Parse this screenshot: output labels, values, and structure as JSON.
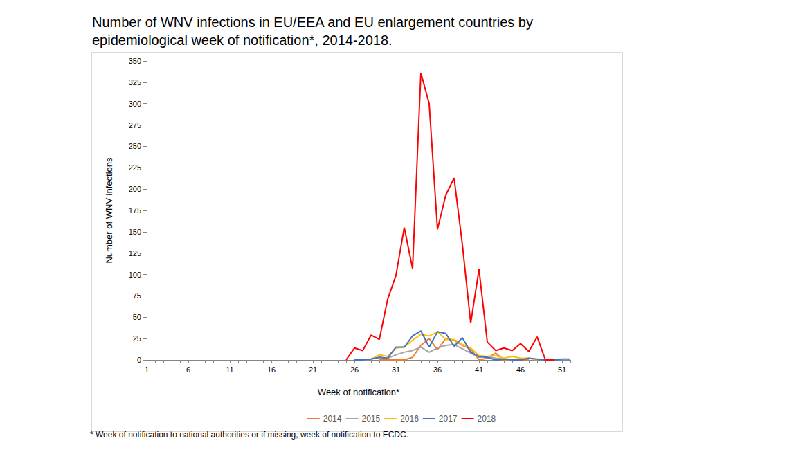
{
  "chart_data": {
    "type": "line",
    "title": "Number of WNV infections in EU/EEA and EU enlargement countries by epidemiological week of notification*, 2014-2018.",
    "x_label": "Week of notification*",
    "y_label": "Number of WNV infections",
    "note": "* Week of notification to national authorities or if missing, week of notification to ECDC.",
    "categories": [
      "1",
      null,
      null,
      null,
      null,
      "6",
      null,
      null,
      null,
      null,
      "11",
      null,
      null,
      null,
      null,
      "16",
      null,
      null,
      null,
      null,
      "21",
      null,
      null,
      null,
      null,
      "26",
      null,
      null,
      null,
      null,
      "31",
      null,
      null,
      null,
      null,
      "36",
      null,
      null,
      null,
      null,
      "41",
      null,
      null,
      null,
      null,
      "46",
      null,
      null,
      null,
      null,
      "51",
      null
    ],
    "series": [
      {
        "name": "2014",
        "color": "#ED7D31",
        "values": [
          null,
          null,
          null,
          null,
          null,
          null,
          null,
          null,
          null,
          null,
          null,
          null,
          null,
          null,
          null,
          null,
          null,
          null,
          null,
          null,
          null,
          null,
          null,
          null,
          null,
          null,
          null,
          null,
          0,
          0,
          0,
          0,
          3,
          17,
          25,
          12,
          25,
          23,
          17,
          13,
          0,
          2,
          8,
          0,
          0,
          1,
          0,
          null,
          null,
          null,
          null,
          null
        ]
      },
      {
        "name": "2015",
        "color": "#A5A5A5",
        "values": [
          null,
          null,
          null,
          null,
          null,
          null,
          null,
          null,
          null,
          null,
          null,
          null,
          null,
          null,
          null,
          null,
          null,
          null,
          null,
          null,
          null,
          null,
          null,
          null,
          null,
          null,
          null,
          1,
          3,
          2,
          6,
          9,
          11,
          15,
          9,
          14,
          17,
          18,
          13,
          8,
          3,
          4,
          2,
          1,
          0,
          null,
          null,
          null,
          null,
          null,
          null,
          null
        ]
      },
      {
        "name": "2016",
        "color": "#FFC000",
        "values": [
          null,
          null,
          null,
          null,
          null,
          null,
          null,
          null,
          null,
          null,
          null,
          null,
          null,
          null,
          null,
          null,
          null,
          null,
          null,
          null,
          null,
          null,
          null,
          null,
          null,
          null,
          0,
          1,
          6,
          4,
          14,
          15,
          23,
          30,
          28,
          33,
          24,
          24,
          18,
          14,
          5,
          4,
          5,
          2,
          4,
          2,
          2,
          0,
          null,
          null,
          null,
          null
        ]
      },
      {
        "name": "2017",
        "color": "#4472C4",
        "values": [
          null,
          null,
          null,
          null,
          null,
          null,
          null,
          null,
          null,
          null,
          null,
          null,
          null,
          null,
          null,
          null,
          null,
          null,
          null,
          null,
          null,
          null,
          null,
          null,
          null,
          0,
          0,
          1,
          3,
          2,
          15,
          15,
          28,
          34,
          15,
          33,
          31,
          16,
          26,
          9,
          4,
          3,
          0,
          1,
          0,
          0,
          2,
          1,
          0,
          0,
          1,
          1
        ]
      },
      {
        "name": "2018",
        "color": "#FF0000",
        "values": [
          null,
          null,
          null,
          null,
          null,
          null,
          null,
          null,
          null,
          null,
          null,
          null,
          null,
          null,
          null,
          null,
          null,
          null,
          null,
          null,
          null,
          null,
          null,
          null,
          0,
          14,
          11,
          29,
          24,
          71,
          99,
          155,
          107,
          336,
          300,
          153,
          193,
          213,
          135,
          43,
          106,
          21,
          11,
          14,
          11,
          19,
          10,
          27,
          0,
          0,
          null,
          null
        ]
      }
    ],
    "ylim": [
      0,
      350
    ],
    "yticks": [
      0,
      25,
      50,
      75,
      100,
      125,
      150,
      175,
      200,
      225,
      250,
      275,
      300,
      325,
      350
    ],
    "grid": false,
    "legend": "bottom"
  }
}
